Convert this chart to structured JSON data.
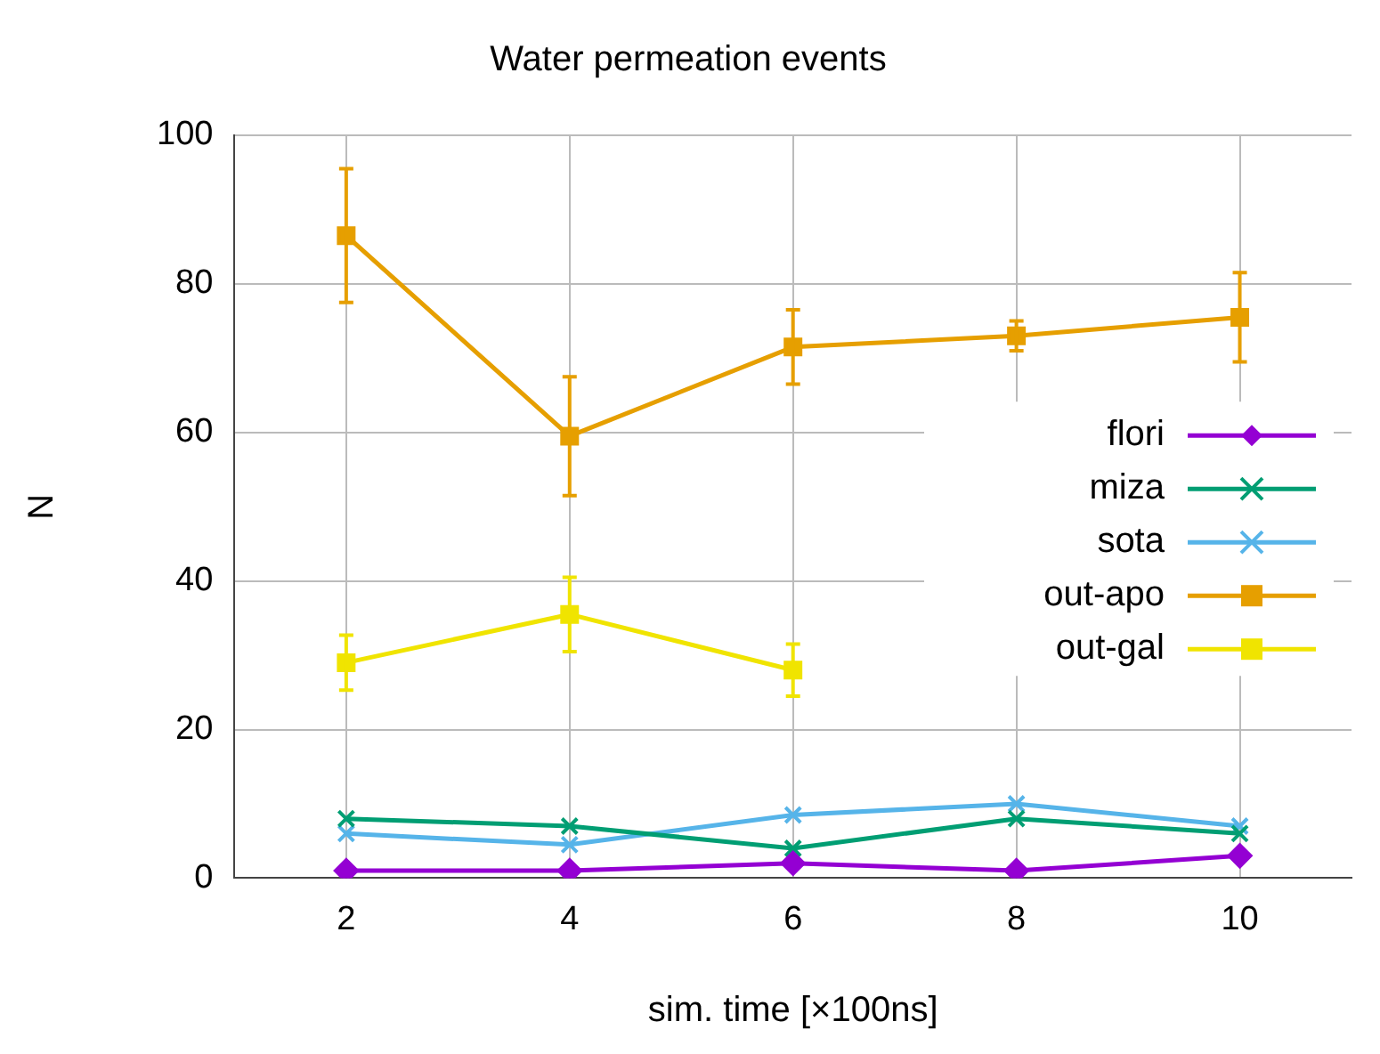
{
  "chart_data": {
    "type": "line",
    "title": "Water permeation events",
    "xlabel": "sim. time [×100ns]",
    "ylabel": "N",
    "x": [
      2,
      4,
      6,
      8,
      10
    ],
    "xlim": [
      1,
      11
    ],
    "xticks": [
      2,
      4,
      6,
      8,
      10
    ],
    "ylim": [
      0,
      100
    ],
    "yticks": [
      0,
      20,
      40,
      60,
      80,
      100
    ],
    "grid": true,
    "legend": "right",
    "series": [
      {
        "name": "flori",
        "color": "#9400d3",
        "marker": "diamond",
        "values": [
          1,
          1,
          2,
          1,
          3
        ]
      },
      {
        "name": "miza",
        "color": "#009e73",
        "marker": "cross",
        "values": [
          8,
          7,
          4,
          8,
          6
        ]
      },
      {
        "name": "sota",
        "color": "#56b4e9",
        "marker": "cross",
        "values": [
          6,
          4.5,
          8.5,
          10,
          7
        ]
      },
      {
        "name": "out-apo",
        "color": "#e69f00",
        "marker": "square",
        "values": [
          86.5,
          59.5,
          71.5,
          73,
          75.5
        ],
        "errors": [
          9,
          8,
          5,
          2,
          6
        ]
      },
      {
        "name": "out-gal",
        "color": "#f0e400",
        "marker": "square",
        "values": [
          29,
          35.5,
          28,
          null,
          null
        ],
        "errors": [
          3.7,
          5,
          3.5,
          null,
          null
        ]
      }
    ]
  }
}
